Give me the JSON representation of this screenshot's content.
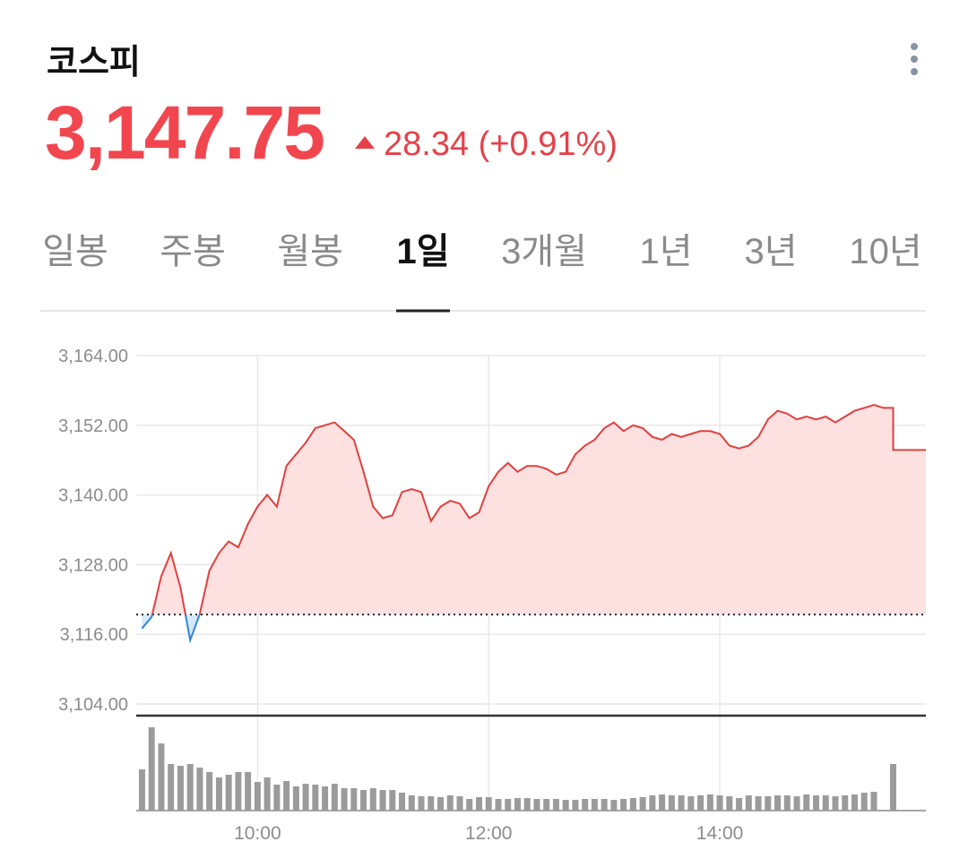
{
  "header": {
    "title": "코스피",
    "price": "3,147.75",
    "change": "28.34",
    "change_percent": "(+0.91%)"
  },
  "tabs": [
    "일봉",
    "주봉",
    "월봉",
    "1일",
    "3개월",
    "1년",
    "3년",
    "10년"
  ],
  "chart_data": [
    {
      "type": "line",
      "x": [
        540,
        545,
        550,
        555,
        560,
        565,
        570,
        575,
        580,
        585,
        590,
        595,
        600,
        605,
        610,
        615,
        620,
        625,
        630,
        635,
        640,
        645,
        650,
        655,
        660,
        665,
        670,
        675,
        680,
        685,
        690,
        695,
        700,
        705,
        710,
        715,
        720,
        725,
        730,
        735,
        740,
        745,
        750,
        755,
        760,
        765,
        770,
        775,
        780,
        785,
        790,
        795,
        800,
        805,
        810,
        815,
        820,
        825,
        830,
        835,
        840,
        845,
        850,
        855,
        860,
        865,
        870,
        875,
        880,
        885,
        890,
        895,
        900,
        905,
        910,
        915,
        920,
        925,
        930,
        930,
        947
      ],
      "values": [
        3117.0,
        3119.0,
        3126.0,
        3130.0,
        3124.0,
        3115.0,
        3119.5,
        3127.0,
        3130.0,
        3132.0,
        3131.0,
        3135.0,
        3138.0,
        3140.0,
        3138.0,
        3145.0,
        3147.0,
        3149.0,
        3151.5,
        3152.0,
        3152.5,
        3151.0,
        3149.5,
        3144.0,
        3138.0,
        3136.0,
        3136.5,
        3140.5,
        3141.0,
        3140.5,
        3135.5,
        3138.0,
        3139.0,
        3138.5,
        3136.0,
        3137.0,
        3141.5,
        3144.0,
        3145.5,
        3144.0,
        3145.0,
        3145.0,
        3144.5,
        3143.5,
        3144.0,
        3147.0,
        3148.5,
        3149.5,
        3151.5,
        3152.5,
        3151.0,
        3152.0,
        3151.5,
        3150.0,
        3149.5,
        3150.5,
        3150.0,
        3150.5,
        3151.0,
        3151.0,
        3150.5,
        3148.5,
        3148.0,
        3148.5,
        3150.0,
        3153.0,
        3154.5,
        3154.0,
        3153.0,
        3153.5,
        3153.0,
        3153.5,
        3152.5,
        3153.5,
        3154.5,
        3155.0,
        3155.5,
        3155.0,
        3155.0,
        3147.75,
        3147.75
      ],
      "reference_line": 3119.41,
      "up_color": "#e0403f",
      "up_fill": "#fde1e1",
      "down_color": "#2f86d8",
      "down_fill": "#d5eaf9",
      "xlim": [
        537,
        947
      ],
      "xticks": [
        {
          "value": 600,
          "label": "10:00"
        },
        {
          "value": 720,
          "label": "12:00"
        },
        {
          "value": 840,
          "label": "14:00"
        }
      ],
      "ylim": [
        3104,
        3164
      ],
      "yticks": [
        {
          "value": 3104,
          "label": "3,104.00"
        },
        {
          "value": 3116,
          "label": "3,116.00"
        },
        {
          "value": 3128,
          "label": "3,128.00"
        },
        {
          "value": 3140,
          "label": "3,140.00"
        },
        {
          "value": 3152,
          "label": "3,152.00"
        },
        {
          "value": 3164,
          "label": "3,164.00"
        }
      ],
      "grid": true
    },
    {
      "type": "bar",
      "x": [
        540,
        545,
        550,
        555,
        560,
        565,
        570,
        575,
        580,
        585,
        590,
        595,
        600,
        605,
        610,
        615,
        620,
        625,
        630,
        635,
        640,
        645,
        650,
        655,
        660,
        665,
        670,
        675,
        680,
        685,
        690,
        695,
        700,
        705,
        710,
        715,
        720,
        725,
        730,
        735,
        740,
        745,
        750,
        755,
        760,
        765,
        770,
        775,
        780,
        785,
        790,
        795,
        800,
        805,
        810,
        815,
        820,
        825,
        830,
        835,
        840,
        845,
        850,
        855,
        860,
        865,
        870,
        875,
        880,
        885,
        890,
        895,
        900,
        905,
        910,
        915,
        920,
        930
      ],
      "values": [
        46,
        93,
        75,
        52,
        50,
        52,
        48,
        43,
        37,
        40,
        43,
        43,
        32,
        37,
        29,
        33,
        27,
        30,
        29,
        27,
        30,
        25,
        25,
        23,
        25,
        23,
        23,
        20,
        17,
        16,
        16,
        15,
        17,
        16,
        13,
        15,
        15,
        13,
        13,
        14,
        14,
        13,
        13,
        13,
        12,
        12,
        13,
        13,
        13,
        12,
        13,
        14,
        15,
        17,
        18,
        17,
        17,
        16,
        17,
        18,
        17,
        16,
        14,
        17,
        16,
        16,
        17,
        17,
        16,
        18,
        17,
        17,
        16,
        17,
        18,
        20,
        21,
        52
      ],
      "color": "#9b9b9b",
      "xlim": [
        537,
        947
      ],
      "ylim": [
        0,
        100
      ]
    }
  ]
}
